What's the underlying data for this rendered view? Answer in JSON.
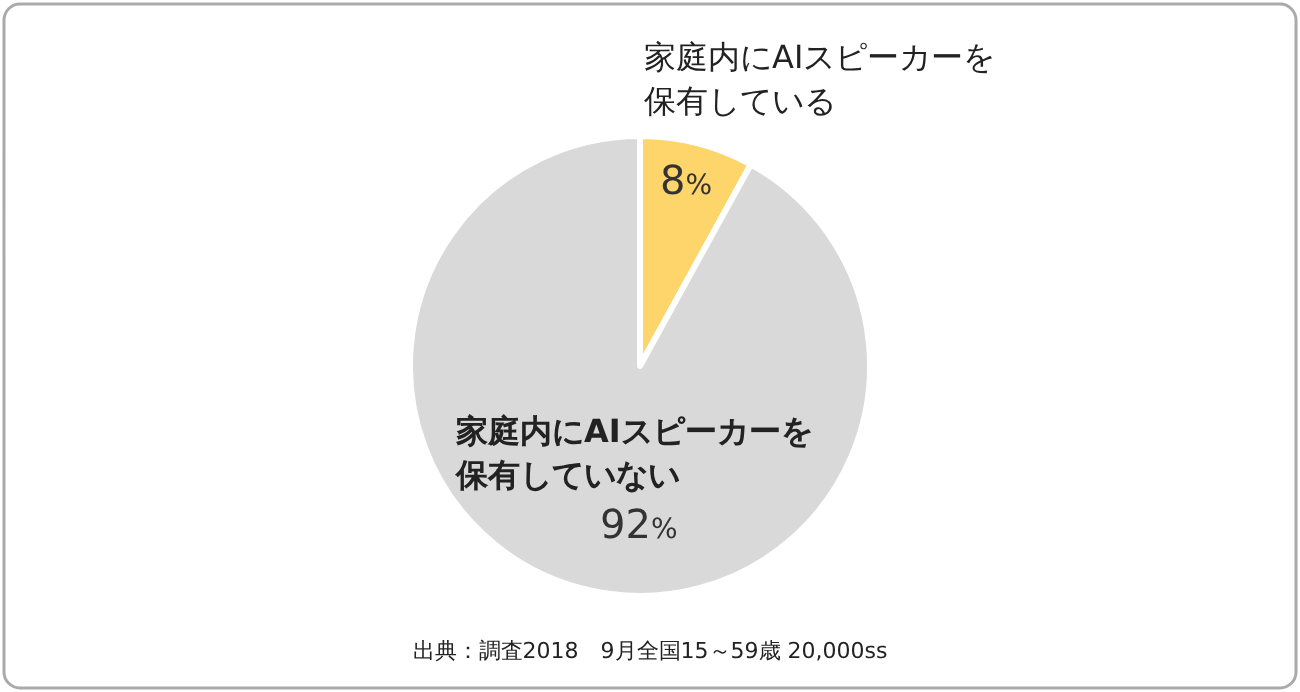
{
  "chart_data": {
    "type": "pie",
    "categories": [
      "家庭内にAIスピーカーを保有している",
      "家庭内にAIスピーカーを保有していない"
    ],
    "values": [
      8,
      92
    ],
    "colors": [
      "#fdd56a",
      "#d9d9d9"
    ],
    "value_labels": [
      "8%",
      "92%"
    ],
    "annotations": [
      "出典：調査2018　9月全国15～59歳 20,000ss"
    ]
  }
}
